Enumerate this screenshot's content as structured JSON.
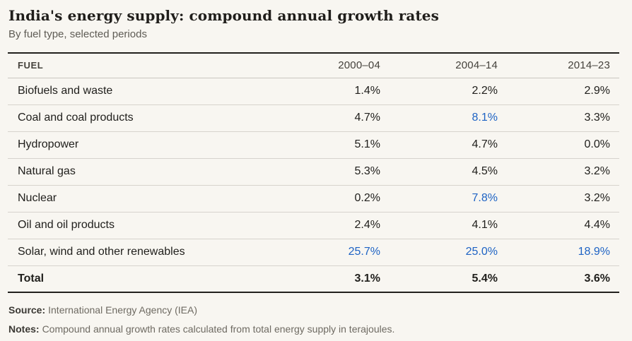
{
  "title": "India's energy supply: compound annual growth rates",
  "subtitle": "By fuel type, selected periods",
  "colors": {
    "background": "#f8f6f1",
    "accent_blue": "#1e63c4",
    "text": "#21201d",
    "muted": "#6e6a62",
    "divider": "#d6d3cd",
    "strong_border": "#21201d"
  },
  "chart_data": {
    "type": "table",
    "title": "India's energy supply: compound annual growth rates",
    "subtitle": "By fuel type, selected periods",
    "unit": "%",
    "columns": [
      "FUEL",
      "2000–04",
      "2004–14",
      "2014–23"
    ],
    "highlight_meaning": "blue values emphasized",
    "rows": [
      {
        "fuel": "Biofuels and waste",
        "values": [
          1.4,
          2.2,
          2.9
        ],
        "display": [
          "1.4%",
          "2.2%",
          "2.9%"
        ],
        "highlight": [
          false,
          false,
          false
        ],
        "bold": false
      },
      {
        "fuel": "Coal and coal products",
        "values": [
          4.7,
          8.1,
          3.3
        ],
        "display": [
          "4.7%",
          "8.1%",
          "3.3%"
        ],
        "highlight": [
          false,
          true,
          false
        ],
        "bold": false
      },
      {
        "fuel": "Hydropower",
        "values": [
          5.1,
          4.7,
          0.0
        ],
        "display": [
          "5.1%",
          "4.7%",
          "0.0%"
        ],
        "highlight": [
          false,
          false,
          false
        ],
        "bold": false
      },
      {
        "fuel": "Natural gas",
        "values": [
          5.3,
          4.5,
          3.2
        ],
        "display": [
          "5.3%",
          "4.5%",
          "3.2%"
        ],
        "highlight": [
          false,
          false,
          false
        ],
        "bold": false
      },
      {
        "fuel": "Nuclear",
        "values": [
          0.2,
          7.8,
          3.2
        ],
        "display": [
          "0.2%",
          "7.8%",
          "3.2%"
        ],
        "highlight": [
          false,
          true,
          false
        ],
        "bold": false
      },
      {
        "fuel": "Oil and oil products",
        "values": [
          2.4,
          4.1,
          4.4
        ],
        "display": [
          "2.4%",
          "4.1%",
          "4.4%"
        ],
        "highlight": [
          false,
          false,
          false
        ],
        "bold": false
      },
      {
        "fuel": "Solar, wind and other renewables",
        "values": [
          25.7,
          25.0,
          18.9
        ],
        "display": [
          "25.7%",
          "25.0%",
          "18.9%"
        ],
        "highlight": [
          true,
          true,
          true
        ],
        "bold": false
      },
      {
        "fuel": "Total",
        "values": [
          3.1,
          5.4,
          3.6
        ],
        "display": [
          "3.1%",
          "5.4%",
          "3.6%"
        ],
        "highlight": [
          false,
          false,
          false
        ],
        "bold": true
      }
    ]
  },
  "footer": {
    "source_label": "Source:",
    "source_text": "International Energy Agency (IEA)",
    "notes_label": "Notes:",
    "notes_text": "Compound annual growth rates calculated from total energy supply in terajoules."
  }
}
